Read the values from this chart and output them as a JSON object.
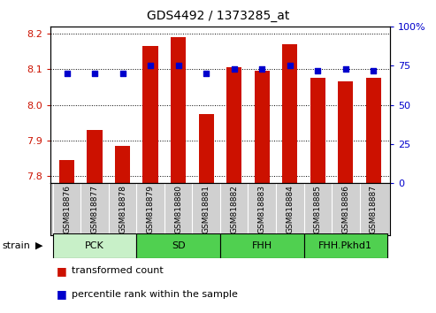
{
  "title": "GDS4492 / 1373285_at",
  "samples": [
    "GSM818876",
    "GSM818877",
    "GSM818878",
    "GSM818879",
    "GSM818880",
    "GSM818881",
    "GSM818882",
    "GSM818883",
    "GSM818884",
    "GSM818885",
    "GSM818886",
    "GSM818887"
  ],
  "red_values": [
    7.845,
    7.93,
    7.885,
    8.165,
    8.19,
    7.975,
    8.105,
    8.095,
    8.17,
    8.075,
    8.065,
    8.075
  ],
  "blue_percentiles": [
    70,
    70,
    70,
    75,
    75,
    70,
    73,
    73,
    75,
    72,
    73,
    72
  ],
  "groups": [
    {
      "label": "PCK",
      "start": 0,
      "end": 3,
      "color": "#c8f0c8"
    },
    {
      "label": "SD",
      "start": 3,
      "end": 6,
      "color": "#50d050"
    },
    {
      "label": "FHH",
      "start": 6,
      "end": 9,
      "color": "#50d050"
    },
    {
      "label": "FHH.Pkhd1",
      "start": 9,
      "end": 12,
      "color": "#50d050"
    }
  ],
  "ylim_left": [
    7.78,
    8.22
  ],
  "ylim_right": [
    0,
    100
  ],
  "yticks_left": [
    7.8,
    7.9,
    8.0,
    8.1,
    8.2
  ],
  "yticks_right": [
    0,
    25,
    50,
    75,
    100
  ],
  "bar_color": "#cc1100",
  "dot_color": "#0000cc",
  "bg_color": "#ffffff",
  "xtick_bg": "#d0d0d0",
  "strain_label": "strain",
  "legend_items": [
    {
      "color": "#cc1100",
      "label": "transformed count"
    },
    {
      "color": "#0000cc",
      "label": "percentile rank within the sample"
    }
  ]
}
